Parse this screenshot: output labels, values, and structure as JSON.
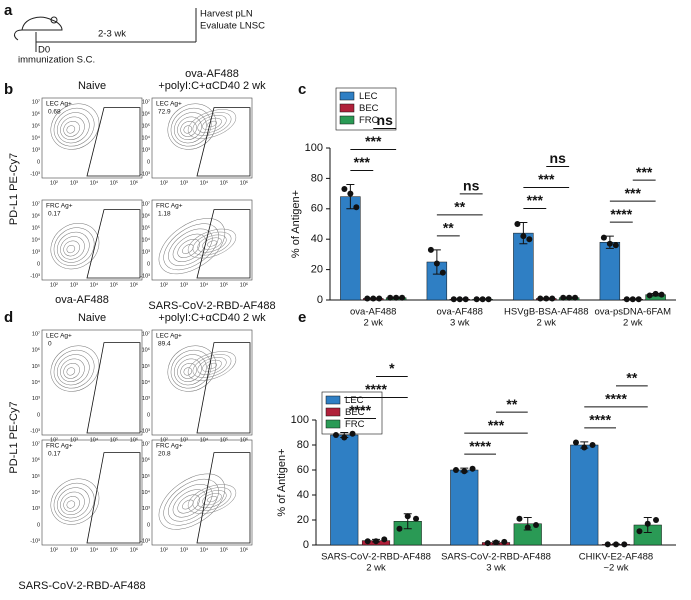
{
  "panel_labels": [
    "a",
    "b",
    "c",
    "d",
    "e"
  ],
  "schematic": {
    "start": "D0",
    "start_note": "immunization S.C.",
    "interval": "2-3 wk",
    "end": [
      "Harvest pLN",
      "Evaluate LNSC"
    ]
  },
  "flow": [
    {
      "header_left": "Naive",
      "header_right": [
        "ova-AF488",
        "+polyI:C+αCD40 2 wk"
      ],
      "ylabel": "PD-L1 PE-Cy7",
      "xlabel": "ova-AF488",
      "xticks": [
        "10²",
        "10³",
        "10⁴",
        "10⁵",
        "10⁶"
      ],
      "yticks": [
        "-10³",
        "0",
        "10³",
        "10⁴",
        "10⁵",
        "10⁶",
        "10⁷"
      ],
      "gates": [
        {
          "label": "LEC Ag+",
          "value": "0.68"
        },
        {
          "label": "LEC Ag+",
          "value": "72.9"
        },
        {
          "label": "FRC Ag+",
          "value": "0.17"
        },
        {
          "label": "FRC Ag+",
          "value": "1.18"
        }
      ]
    },
    {
      "header_left": "Naive",
      "header_right": [
        "SARS-CoV-2-RBD-AF488",
        "+polyI:C+αCD40 2 wk"
      ],
      "ylabel": "PD-L1 PE-Cy7",
      "xlabel": "SARS-CoV-2-RBD-AF488",
      "xticks": [
        "10²",
        "10³",
        "10⁴",
        "10⁵",
        "10⁶"
      ],
      "yticks": [
        "-10³",
        "0",
        "10³",
        "10⁴",
        "10⁵",
        "10⁶",
        "10⁷"
      ],
      "gates": [
        {
          "label": "LEC Ag+",
          "value": "0"
        },
        {
          "label": "LEC Ag+",
          "value": "89.4"
        },
        {
          "label": "FRC Ag+",
          "value": "0.17"
        },
        {
          "label": "FRC Ag+",
          "value": "20.8"
        }
      ]
    }
  ],
  "chart_data": [
    {
      "type": "bar",
      "ylabel": "% of Antigen+",
      "ylim": [
        0,
        100
      ],
      "yticks": [
        0,
        20,
        40,
        60,
        80,
        100
      ],
      "legend": "upper left",
      "categories": [
        [
          "ova-AF488",
          "2 wk"
        ],
        [
          "ova-AF488",
          "3 wk"
        ],
        [
          "HSVgB-BSA-AF488",
          "2 wk"
        ],
        [
          "ova-psDNA-6FAM",
          "2 wk"
        ]
      ],
      "series": [
        {
          "name": "LEC",
          "color": "#2f7fc4",
          "values": [
            68,
            25,
            44,
            38
          ],
          "errors": [
            8,
            8,
            7,
            4
          ],
          "points": [
            [
              73,
              70,
              61
            ],
            [
              33,
              24,
              18
            ],
            [
              50,
              42,
              40
            ],
            [
              41,
              37,
              36
            ]
          ]
        },
        {
          "name": "BEC",
          "color": "#b0203a",
          "values": [
            1,
            0.5,
            1,
            0.5
          ],
          "errors": [
            0.3,
            0.2,
            0.3,
            0.2
          ],
          "points": [
            [
              1,
              1,
              1
            ],
            [
              0.5,
              0.5,
              0.5
            ],
            [
              1,
              1,
              1
            ],
            [
              0.5,
              0.5,
              0.5
            ]
          ]
        },
        {
          "name": "FRC",
          "color": "#2a9a55",
          "values": [
            1.5,
            0.5,
            1.5,
            3.5
          ],
          "errors": [
            0.4,
            0.2,
            0.4,
            0.8
          ],
          "points": [
            [
              1.5,
              1.5,
              1.5
            ],
            [
              0.5,
              0.5,
              0.5
            ],
            [
              1.5,
              1.5,
              1.5
            ],
            [
              3,
              4,
              3.5
            ]
          ]
        }
      ],
      "comparisons": [
        [
          {
            "groups": [
              "LEC",
              "BEC"
            ],
            "label": "***"
          },
          {
            "groups": [
              "LEC",
              "FRC"
            ],
            "label": "***"
          },
          {
            "groups": [
              "BEC",
              "FRC"
            ],
            "label": "ns"
          }
        ],
        [
          {
            "groups": [
              "LEC",
              "BEC"
            ],
            "label": "**"
          },
          {
            "groups": [
              "LEC",
              "FRC"
            ],
            "label": "**"
          },
          {
            "groups": [
              "BEC",
              "FRC"
            ],
            "label": "ns"
          }
        ],
        [
          {
            "groups": [
              "LEC",
              "BEC"
            ],
            "label": "***"
          },
          {
            "groups": [
              "LEC",
              "FRC"
            ],
            "label": "***"
          },
          {
            "groups": [
              "BEC",
              "FRC"
            ],
            "label": "ns"
          }
        ],
        [
          {
            "groups": [
              "LEC",
              "BEC"
            ],
            "label": "****"
          },
          {
            "groups": [
              "LEC",
              "FRC"
            ],
            "label": "***"
          },
          {
            "groups": [
              "BEC",
              "FRC"
            ],
            "label": "***"
          }
        ]
      ]
    },
    {
      "type": "bar",
      "ylabel": "% of Antigen+",
      "ylim": [
        0,
        100
      ],
      "yticks": [
        0,
        20,
        40,
        60,
        80,
        100
      ],
      "legend": "upper left",
      "categories": [
        [
          "SARS-CoV-2-RBD-AF488",
          "2 wk"
        ],
        [
          "SARS-CoV-2-RBD-AF488",
          "3 wk"
        ],
        [
          "CHIKV-E2-AF488",
          "~2 wk"
        ]
      ],
      "series": [
        {
          "name": "LEC",
          "color": "#2f7fc4",
          "values": [
            88,
            60,
            80
          ],
          "errors": [
            2,
            1.5,
            2.5
          ],
          "points": [
            [
              88,
              86,
              89
            ],
            [
              60,
              59,
              61
            ],
            [
              82,
              78,
              80
            ]
          ]
        },
        {
          "name": "BEC",
          "color": "#b0203a",
          "values": [
            3.5,
            2,
            0.5
          ],
          "errors": [
            1,
            1,
            0.3
          ],
          "points": [
            [
              3,
              3,
              4.5
            ],
            [
              1.5,
              2,
              2.5
            ],
            [
              0.5,
              0.5,
              0.5
            ]
          ]
        },
        {
          "name": "FRC",
          "color": "#2a9a55",
          "values": [
            19,
            17,
            16
          ],
          "errors": [
            6,
            5,
            6
          ],
          "points": [
            [
              13,
              23,
              21
            ],
            [
              21,
              14,
              16
            ],
            [
              11,
              17,
              20
            ]
          ]
        }
      ],
      "comparisons": [
        [
          {
            "groups": [
              "LEC",
              "BEC"
            ],
            "label": "****"
          },
          {
            "groups": [
              "LEC",
              "FRC"
            ],
            "label": "****"
          },
          {
            "groups": [
              "BEC",
              "FRC"
            ],
            "label": "*"
          }
        ],
        [
          {
            "groups": [
              "LEC",
              "BEC"
            ],
            "label": "****"
          },
          {
            "groups": [
              "LEC",
              "FRC"
            ],
            "label": "***"
          },
          {
            "groups": [
              "BEC",
              "FRC"
            ],
            "label": "**"
          }
        ],
        [
          {
            "groups": [
              "LEC",
              "BEC"
            ],
            "label": "****"
          },
          {
            "groups": [
              "LEC",
              "FRC"
            ],
            "label": "****"
          },
          {
            "groups": [
              "BEC",
              "FRC"
            ],
            "label": "**"
          }
        ]
      ]
    }
  ]
}
